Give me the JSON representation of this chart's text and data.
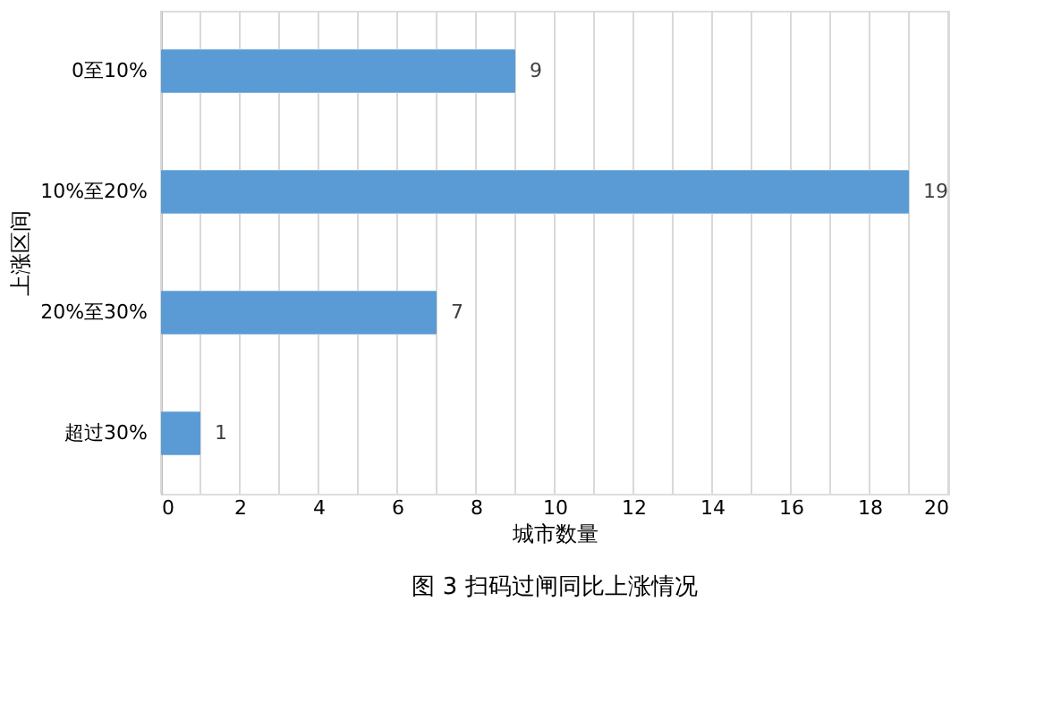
{
  "chart_data": {
    "type": "bar",
    "orientation": "horizontal",
    "categories": [
      "0至10%",
      "10%至20%",
      "20%至30%",
      "超过30%"
    ],
    "values": [
      9,
      19,
      7,
      1
    ],
    "color": "#5b9bd5",
    "xlim": [
      0,
      20
    ],
    "xticks": [
      0,
      {
        "value": 1,
        "label": null
      },
      2,
      {
        "value": 3,
        "label": null
      },
      4,
      {
        "value": 5,
        "label": null
      },
      6,
      {
        "value": 7,
        "label": null
      },
      8,
      {
        "value": 9,
        "label": null
      },
      10,
      {
        "value": 11,
        "label": null
      },
      12,
      {
        "value": 13,
        "label": null
      },
      14,
      {
        "value": 15,
        "label": null
      },
      16,
      {
        "value": 17,
        "label": null
      },
      18,
      {
        "value": 19,
        "label": null
      },
      20
    ],
    "xlabel": "城市数量",
    "ylabel": "上涨区间",
    "grid": "x",
    "data_labels": true,
    "annotations": [
      "图 3 扫码过闸同比上涨情况"
    ]
  }
}
